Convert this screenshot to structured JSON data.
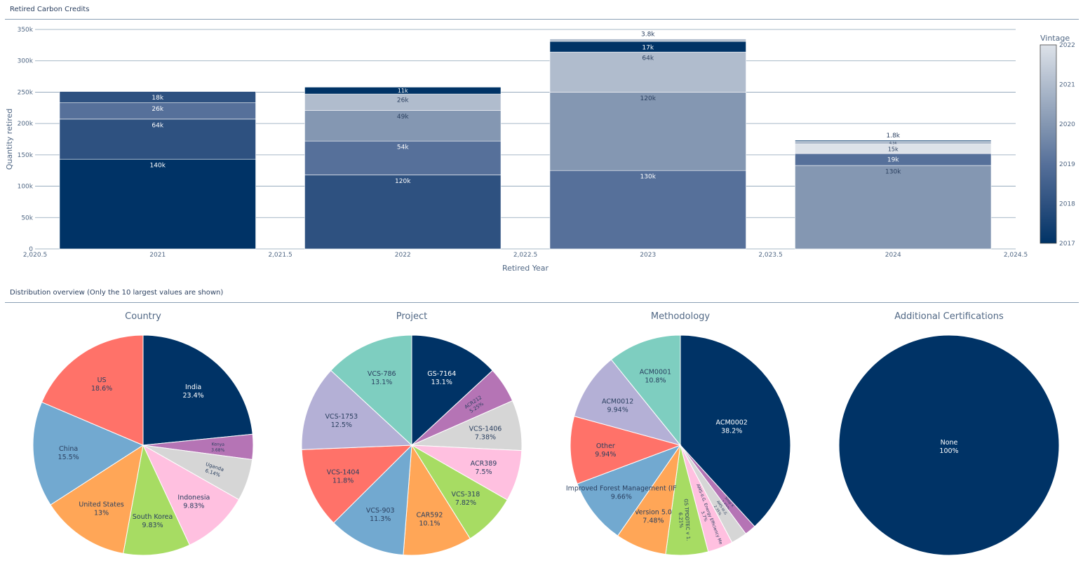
{
  "colors": {
    "vintage_scale": [
      "#003366",
      "#2e5180",
      "#56709a",
      "#8497b2",
      "#b0bccd",
      "#dde2e9"
    ],
    "pie_palette": [
      "#003366",
      "#b574b5",
      "#d6d6d6",
      "#ffc0e0",
      "#a7dc63",
      "#ffa657",
      "#72a9d0",
      "#ff7269",
      "#b4b0d6",
      "#7ecec0"
    ]
  },
  "sections": {
    "retired_title": "Retired Carbon Credits",
    "distribution_title": "Distribution overview (Only the 10 largest values are shown)"
  },
  "chart_data": [
    {
      "type": "bar",
      "stacked": true,
      "title": "Retired Carbon Credits",
      "xlabel": "Retired Year",
      "ylabel": "Quantity retired",
      "xlim": [
        2020.5,
        2024.5
      ],
      "ylim": [
        0,
        350000
      ],
      "xticks": [
        {
          "v": 2020.5,
          "label": "2,020.5"
        },
        {
          "v": 2021,
          "label": "2021"
        },
        {
          "v": 2021.5,
          "label": "2,021.5"
        },
        {
          "v": 2022,
          "label": "2022"
        },
        {
          "v": 2022.5,
          "label": "2,022.5"
        },
        {
          "v": 2023,
          "label": "2023"
        },
        {
          "v": 2023.5,
          "label": "2,023.5"
        },
        {
          "v": 2024,
          "label": "2024"
        },
        {
          "v": 2024.5,
          "label": "2,024.5"
        }
      ],
      "yticks": [
        {
          "v": 0,
          "label": "0"
        },
        {
          "v": 50000,
          "label": "50k"
        },
        {
          "v": 100000,
          "label": "100k"
        },
        {
          "v": 150000,
          "label": "150k"
        },
        {
          "v": 200000,
          "label": "200k"
        },
        {
          "v": 250000,
          "label": "250k"
        },
        {
          "v": 300000,
          "label": "300k"
        },
        {
          "v": 350000,
          "label": "350k"
        }
      ],
      "colorbar": {
        "title": "Vintage",
        "min": 2017,
        "max": 2022,
        "ticks": [
          2017,
          2018,
          2019,
          2020,
          2021,
          2022
        ]
      },
      "bars": [
        {
          "x": 2021,
          "segments": [
            {
              "vintage": 2017,
              "value": 143000,
              "label": "140k"
            },
            {
              "vintage": 2018,
              "value": 64000,
              "label": "64k"
            },
            {
              "vintage": 2019,
              "value": 26000,
              "label": "26k"
            },
            {
              "vintage": 2018,
              "value": 18000,
              "label": "18k"
            }
          ]
        },
        {
          "x": 2022,
          "segments": [
            {
              "vintage": 2018,
              "value": 118000,
              "label": "120k"
            },
            {
              "vintage": 2019,
              "value": 54000,
              "label": "54k"
            },
            {
              "vintage": 2020,
              "value": 49000,
              "label": "49k"
            },
            {
              "vintage": 2021,
              "value": 26000,
              "label": "26k"
            },
            {
              "vintage": 2017,
              "value": 11000,
              "label": "11k"
            }
          ]
        },
        {
          "x": 2023,
          "segments": [
            {
              "vintage": 2019,
              "value": 125000,
              "label": "130k"
            },
            {
              "vintage": 2020,
              "value": 125000,
              "label": "120k"
            },
            {
              "vintage": 2021,
              "value": 64000,
              "label": "64k"
            },
            {
              "vintage": 2017,
              "value": 17000,
              "label": "17k"
            },
            {
              "vintage": 2021,
              "value": 3800,
              "label": "3.8k"
            }
          ]
        },
        {
          "x": 2024,
          "segments": [
            {
              "vintage": 2020,
              "value": 133000,
              "label": "130k"
            },
            {
              "vintage": 2019,
              "value": 19000,
              "label": "19k"
            },
            {
              "vintage": 2022,
              "value": 15000,
              "label": "15k"
            },
            {
              "vintage": 2021,
              "value": 4500,
              "label": "4.5k"
            },
            {
              "vintage": 2017,
              "value": 1800,
              "label": "1.8k"
            }
          ]
        }
      ]
    },
    {
      "type": "pie",
      "title": "Country",
      "slices": [
        {
          "label": "India",
          "percent": 23.4
        },
        {
          "label": "Kenya",
          "percent": 3.68
        },
        {
          "label": "Uganda",
          "percent": 6.14
        },
        {
          "label": "Indonesia",
          "percent": 9.83
        },
        {
          "label": "South Korea",
          "percent": 9.83
        },
        {
          "label": "United States",
          "percent": 13
        },
        {
          "label": "China",
          "percent": 15.5
        },
        {
          "label": "US",
          "percent": 18.6
        }
      ]
    },
    {
      "type": "pie",
      "title": "Project",
      "slices": [
        {
          "label": "GS-7164",
          "percent": 13.1
        },
        {
          "label": "ACR212",
          "percent": 5.25
        },
        {
          "label": "VCS-1406",
          "percent": 7.38
        },
        {
          "label": "ACR389",
          "percent": 7.5
        },
        {
          "label": "VCS-318",
          "percent": 7.82
        },
        {
          "label": "CAR592",
          "percent": 10.1
        },
        {
          "label": "VCS-903",
          "percent": 11.3
        },
        {
          "label": "VCS-1404",
          "percent": 11.8
        },
        {
          "label": "VCS-1753",
          "percent": 12.5
        },
        {
          "label": "VCS-786",
          "percent": 13.1
        }
      ]
    },
    {
      "type": "pie",
      "title": "Methodology",
      "slices": [
        {
          "label": "ACM0002",
          "percent": 38.2
        },
        {
          "label": "Shop K",
          "percent": 1.65
        },
        {
          "label": "AMS-III.G",
          "percent": 2.35
        },
        {
          "label": "AMS-II.G. Energy Efficiency Me",
          "percent": 3.7
        },
        {
          "label": "GS TPDDTEC v 1.",
          "percent": 6.21
        },
        {
          "label": "Version 5.0",
          "percent": 7.48
        },
        {
          "label": "Improved Forest Management (IF",
          "percent": 9.66
        },
        {
          "label": "Other",
          "percent": 9.94
        },
        {
          "label": "ACM0012",
          "percent": 9.94
        },
        {
          "label": "ACM0001",
          "percent": 10.8
        }
      ]
    },
    {
      "type": "pie",
      "title": "Additional Certifications",
      "slices": [
        {
          "label": "None",
          "percent": 100
        }
      ]
    }
  ]
}
